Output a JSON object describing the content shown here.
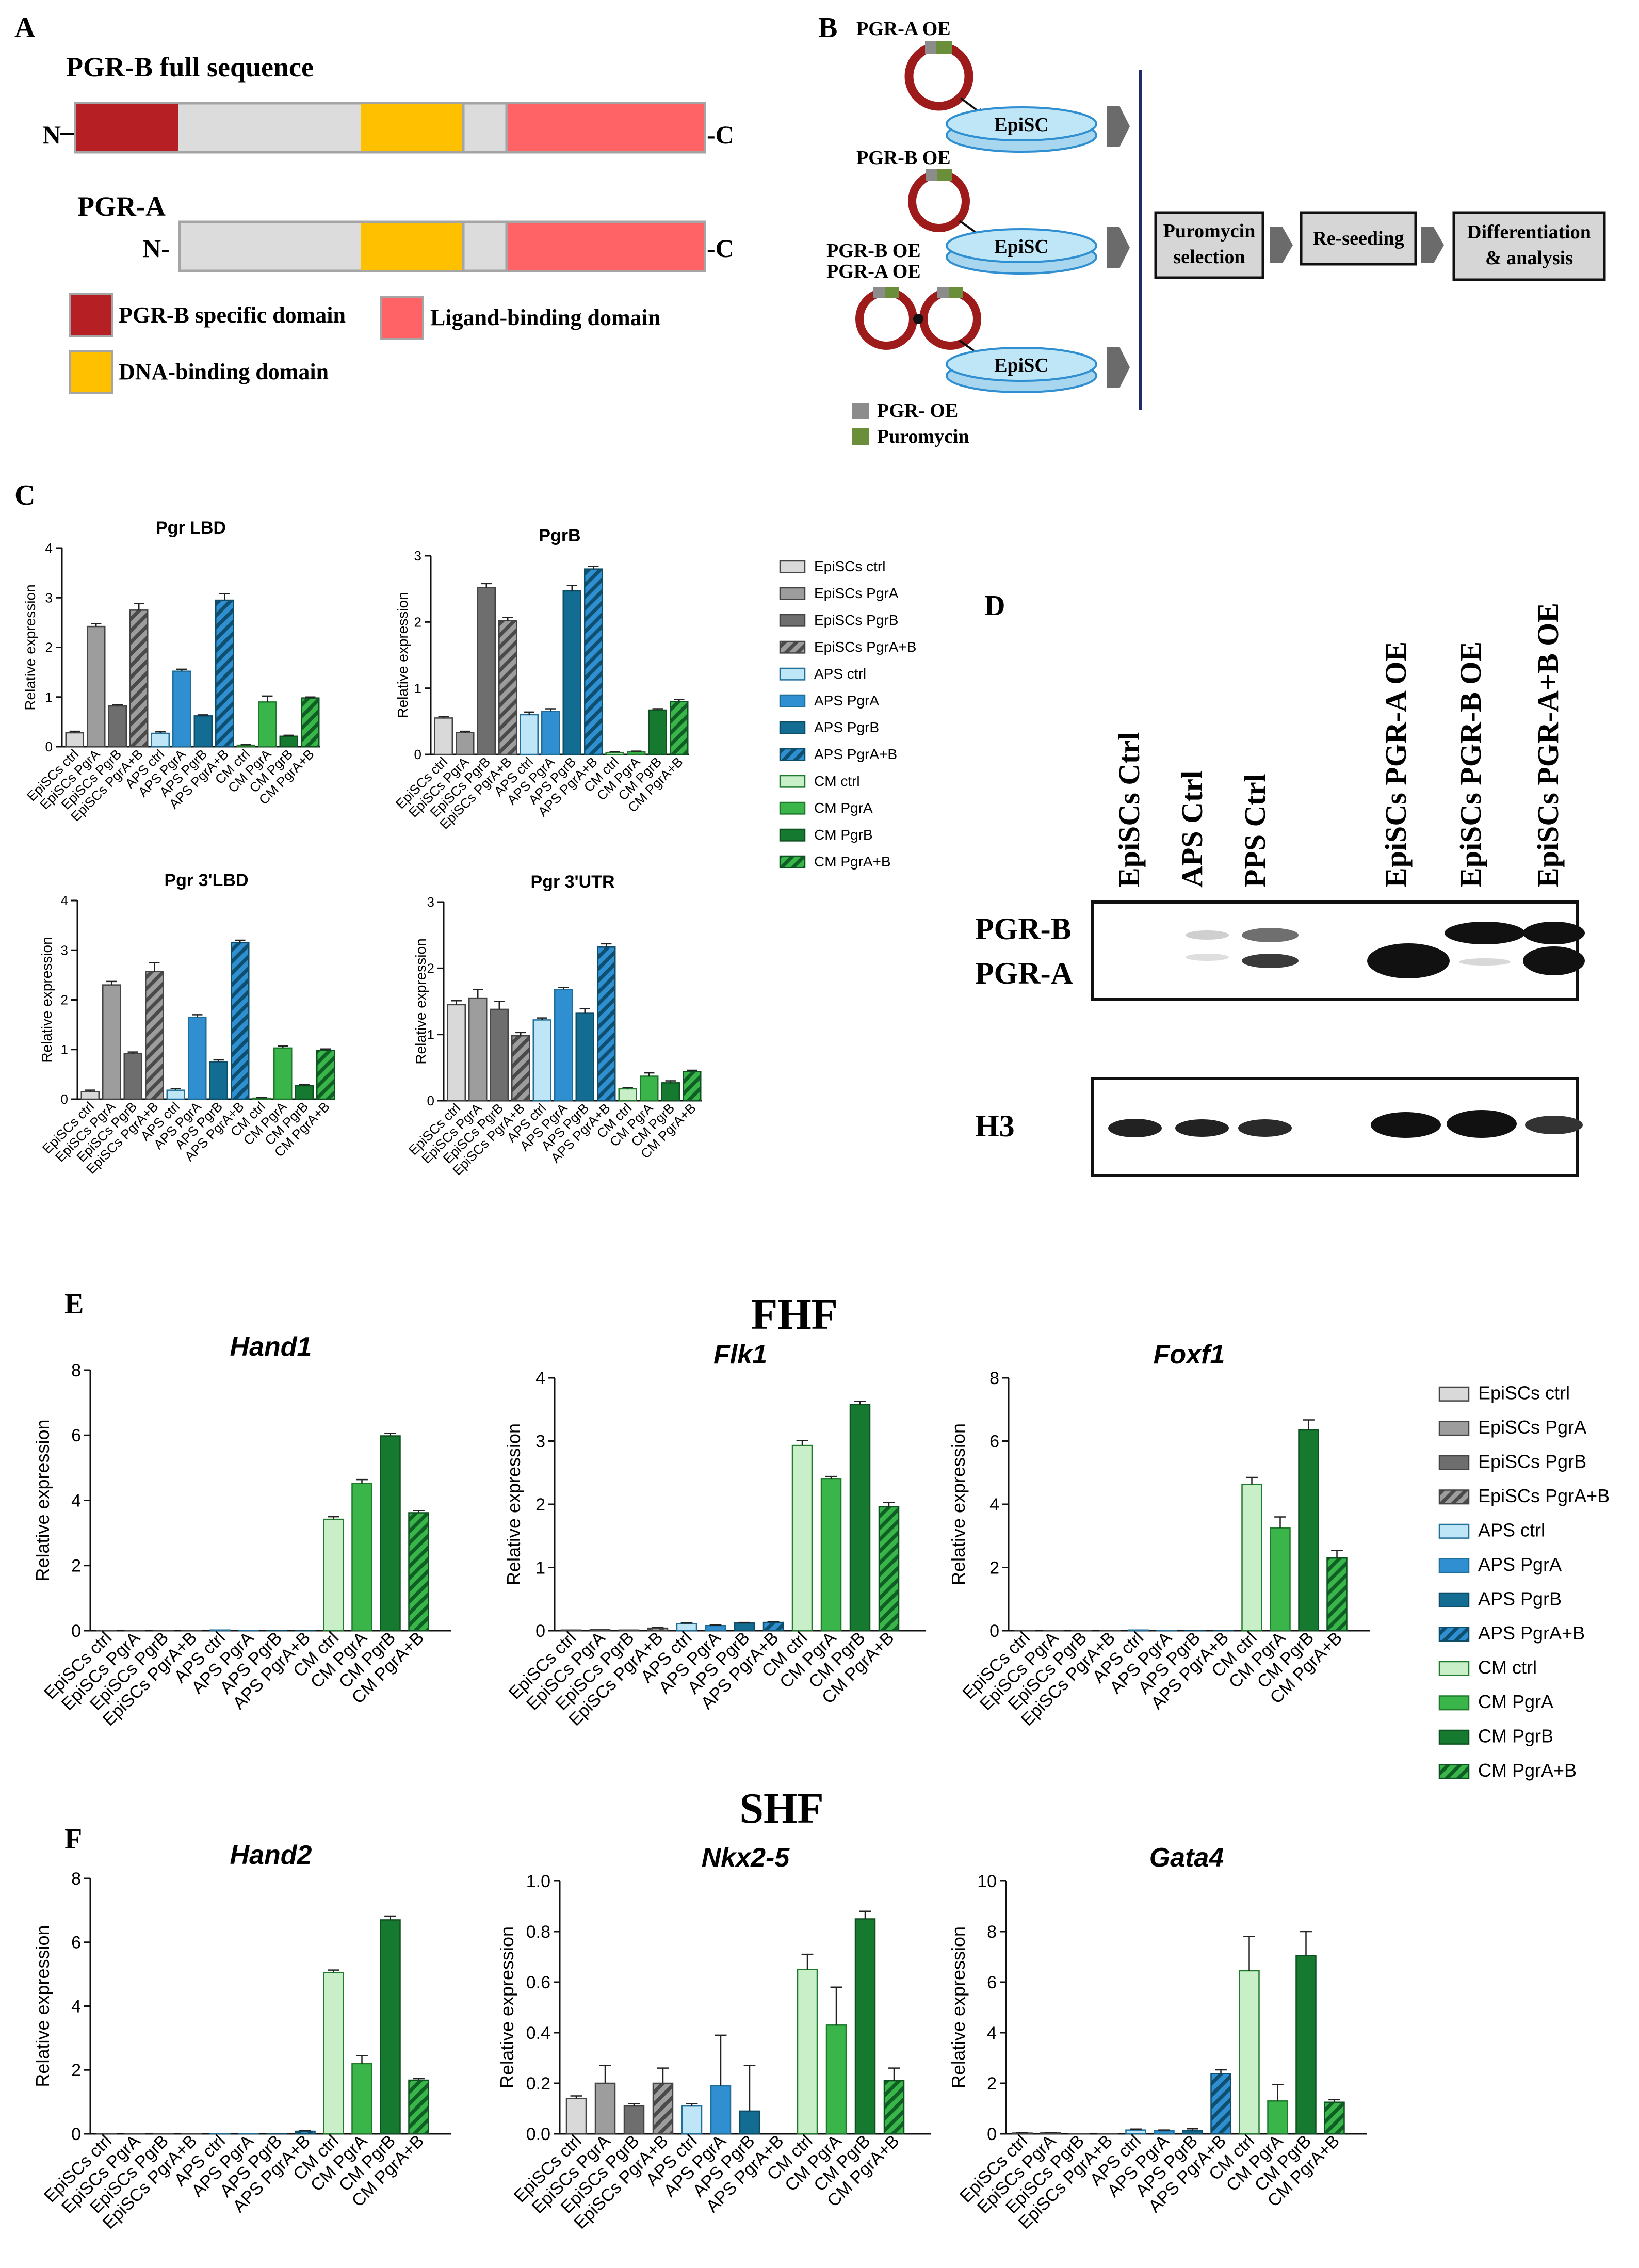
{
  "palette": {
    "grey_light": "#d9d9d9",
    "grey_mid": "#9d9d9d",
    "grey_dark": "#6e6e6e",
    "blue_light": "#bfe6f7",
    "blue_mid": "#2f8fd1",
    "blue_dark": "#136c92",
    "green_light": "#c9efc9",
    "green_mid": "#39b54a",
    "green_dark": "#157a2f",
    "dom_pgrb": "#b61f24",
    "dom_dna": "#ffc000",
    "dom_lbd": "#ff6366",
    "dom_base": "#dcdcdc",
    "puro": "#6a8e3a",
    "pgroe": "#8c8c8c",
    "plasmid": "#9e1b1b",
    "dish": "#a9d6ef"
  },
  "panelA": {
    "letter": "A",
    "title_b": "PGR-B full sequence",
    "title_a": "PGR-A",
    "n_term": "N-",
    "n_term_plain": "N",
    "c_term": "-C",
    "legend": [
      {
        "label": "PGR-B specific domain",
        "color_key": "dom_pgrb"
      },
      {
        "label": "Ligand-binding domain",
        "color_key": "dom_lbd"
      },
      {
        "label": "DNA-binding domain",
        "color_key": "dom_dna"
      }
    ]
  },
  "panelB": {
    "letter": "B",
    "oe_labels": [
      "PGR-A OE",
      "PGR-B OE",
      "PGR-B OE",
      "PGR-A OE"
    ],
    "dish_label": "EpiSC",
    "steps": [
      "Puromycin selection",
      "Re-seeding",
      "Differentiation & analysis"
    ],
    "steps_lines": [
      [
        "Puromycin",
        "selection"
      ],
      [
        "Re-seeding"
      ],
      [
        "Differentiation",
        "& analysis"
      ]
    ],
    "legend": [
      {
        "label": "PGR- OE",
        "color_key": "pgroe"
      },
      {
        "label": "Puromycin",
        "color_key": "puro"
      }
    ]
  },
  "panelC": {
    "letter": "C",
    "ylabel": "Relative expression",
    "legend": [
      "EpiSCs ctrl",
      "EpiSCs PgrA",
      "EpiSCs PgrB",
      "EpiSCs PgrA+B",
      "APS ctrl",
      "APS PgrA",
      "APS PgrB",
      "APS PgrA+B",
      "CM ctrl",
      "CM PgrA",
      "CM PgrB",
      "CM PgrA+B"
    ]
  },
  "panelD": {
    "letter": "D",
    "lanes": [
      "EpiSCs Ctrl",
      "APS Ctrl",
      "PPS Ctrl",
      "EpiSCs PGR-A OE",
      "EpiSCs PGR-B OE",
      "EpiSCs PGR-A+B OE"
    ],
    "band_labels": [
      "PGR-B",
      "PGR-A"
    ],
    "loading_label": "H3"
  },
  "panelE": {
    "letter": "E",
    "title": "FHF",
    "ylabel": "Relative expression"
  },
  "panelF": {
    "letter": "F",
    "title": "SHF",
    "ylabel": "Relative expression"
  },
  "chart_data": [
    {
      "id": "c1",
      "panel": "C",
      "type": "bar",
      "title": "Pgr LBD",
      "title_italic": false,
      "categories": [
        "EpiSCs ctrl",
        "EpiSCs PgrA",
        "EpiSCs PgrB",
        "EpiSCs PgrA+B",
        "APS ctrl",
        "APS PgrA",
        "APS PgrB",
        "APS PgrA+B",
        "CM ctrl",
        "CM PgrA",
        "CM PgrB",
        "CM PgrA+B"
      ],
      "values": [
        0.28,
        2.42,
        0.82,
        2.75,
        0.27,
        1.52,
        0.62,
        2.95,
        0.03,
        0.9,
        0.21,
        0.98
      ],
      "errors": [
        0.03,
        0.06,
        0.03,
        0.13,
        0.03,
        0.04,
        0.02,
        0.13,
        0.01,
        0.12,
        0.02,
        0.02
      ],
      "ylabel": "Relative expression",
      "ylim": [
        0,
        4
      ],
      "yticks": [
        "0",
        "1",
        "2",
        "3",
        "4"
      ]
    },
    {
      "id": "c2",
      "panel": "C",
      "type": "bar",
      "title": "PgrB",
      "title_italic": false,
      "categories": [
        "EpiSCs ctrl",
        "EpiSCs PgrA",
        "EpiSCs PgrB",
        "EpiSCs PgrA+B",
        "APS ctrl",
        "APS PgrA",
        "APS PgrB",
        "APS PgrA+B",
        "CM ctrl",
        "CM PgrA",
        "CM PgrB",
        "CM PgrA+B"
      ],
      "values": [
        0.55,
        0.33,
        2.52,
        2.02,
        0.6,
        0.65,
        2.47,
        2.8,
        0.03,
        0.04,
        0.67,
        0.8
      ],
      "errors": [
        0.02,
        0.02,
        0.06,
        0.05,
        0.04,
        0.04,
        0.08,
        0.04,
        0.01,
        0.01,
        0.02,
        0.03
      ],
      "ylabel": "Relative expression",
      "ylim": [
        0,
        3
      ],
      "yticks": [
        "0",
        "1",
        "2",
        "3"
      ]
    },
    {
      "id": "c3",
      "panel": "C",
      "type": "bar",
      "title": "Pgr 3'LBD",
      "title_italic": false,
      "categories": [
        "EpiSCs ctrl",
        "EpiSCs PgrA",
        "EpiSCs PgrB",
        "EpiSCs PgrA+B",
        "APS ctrl",
        "APS PgrA",
        "APS PgrB",
        "APS PgrA+B",
        "CM ctrl",
        "CM PgrA",
        "CM PgrB",
        "CM PgrA+B"
      ],
      "values": [
        0.15,
        2.3,
        0.92,
        2.57,
        0.18,
        1.65,
        0.75,
        3.15,
        0.02,
        1.03,
        0.27,
        0.98
      ],
      "errors": [
        0.03,
        0.07,
        0.03,
        0.18,
        0.03,
        0.05,
        0.04,
        0.05,
        0.01,
        0.04,
        0.02,
        0.03
      ],
      "ylabel": "Relative expression",
      "ylim": [
        0,
        4
      ],
      "yticks": [
        "0",
        "1",
        "2",
        "3",
        "4"
      ]
    },
    {
      "id": "c4",
      "panel": "C",
      "type": "bar",
      "title": "Pgr 3'UTR",
      "title_italic": false,
      "categories": [
        "EpiSCs ctrl",
        "EpiSCs PgrA",
        "EpiSCs PgrB",
        "EpiSCs PgrA+B",
        "APS ctrl",
        "APS PgrA",
        "APS PgrB",
        "APS PgrA+B",
        "CM ctrl",
        "CM PgrA",
        "CM PgrB",
        "CM PgrA+B"
      ],
      "values": [
        1.45,
        1.55,
        1.38,
        0.98,
        1.22,
        1.68,
        1.32,
        2.32,
        0.18,
        0.37,
        0.27,
        0.44
      ],
      "errors": [
        0.06,
        0.13,
        0.12,
        0.05,
        0.03,
        0.03,
        0.07,
        0.05,
        0.02,
        0.05,
        0.03,
        0.02
      ],
      "ylabel": "Relative expression",
      "ylim": [
        0,
        3
      ],
      "yticks": [
        "0",
        "1",
        "2",
        "3"
      ]
    },
    {
      "id": "e1",
      "panel": "E",
      "type": "bar",
      "title": "Hand1",
      "title_italic": true,
      "categories": [
        "EpiSCs ctrl",
        "EpiSCs PgrA",
        "EpiSCs PgrB",
        "EpiSCs PgrA+B",
        "APS ctrl",
        "APS PgrA",
        "APS PgrB",
        "APS PgrA+B",
        "CM ctrl",
        "CM PgrA",
        "CM PgrB",
        "CM PgrA+B"
      ],
      "values": [
        0.01,
        0.01,
        0.01,
        0.01,
        0.02,
        0.01,
        0.01,
        0.01,
        3.42,
        4.52,
        5.98,
        3.62
      ],
      "errors": [
        0,
        0,
        0,
        0,
        0,
        0,
        0,
        0,
        0.08,
        0.12,
        0.08,
        0.06
      ],
      "ylabel": "Relative expression",
      "ylim": [
        0,
        8
      ],
      "yticks": [
        "0",
        "2",
        "4",
        "6",
        "8"
      ]
    },
    {
      "id": "e2",
      "panel": "E",
      "type": "bar",
      "title": "Flk1",
      "title_italic": true,
      "categories": [
        "EpiSCs ctrl",
        "EpiSCs PgrA",
        "EpiSCs PgrB",
        "EpiSCs PgrA+B",
        "APS ctrl",
        "APS PgrA",
        "APS PgrB",
        "APS PgrA+B",
        "CM ctrl",
        "CM PgrA",
        "CM PgrB",
        "CM PgrA+B"
      ],
      "values": [
        0.01,
        0.02,
        0.01,
        0.04,
        0.11,
        0.08,
        0.12,
        0.13,
        2.93,
        2.4,
        3.58,
        1.96
      ],
      "errors": [
        0,
        0,
        0,
        0.01,
        0.01,
        0.01,
        0.01,
        0.01,
        0.08,
        0.04,
        0.05,
        0.07
      ],
      "ylabel": "Relative expression",
      "ylim": [
        0,
        4
      ],
      "yticks": [
        "0",
        "1",
        "2",
        "3",
        "4"
      ]
    },
    {
      "id": "e3",
      "panel": "E",
      "type": "bar",
      "title": "Foxf1",
      "title_italic": true,
      "categories": [
        "EpiSCs ctrl",
        "EpiSCs PgrA",
        "EpiSCs PgrB",
        "EpiSCs PgrA+B",
        "APS ctrl",
        "APS PgrA",
        "APS PgrB",
        "APS PgrA+B",
        "CM ctrl",
        "CM PgrA",
        "CM PgrB",
        "CM PgrA+B"
      ],
      "values": [
        0.01,
        0.01,
        0.01,
        0.01,
        0.02,
        0.01,
        0.01,
        0.01,
        4.63,
        3.25,
        6.35,
        2.3
      ],
      "errors": [
        0,
        0,
        0,
        0,
        0,
        0,
        0,
        0,
        0.22,
        0.35,
        0.32,
        0.24
      ],
      "ylabel": "Relative expression",
      "ylim": [
        0,
        8
      ],
      "yticks": [
        "0",
        "2",
        "4",
        "6",
        "8"
      ]
    },
    {
      "id": "f1",
      "panel": "F",
      "type": "bar",
      "title": "Hand2",
      "title_italic": true,
      "categories": [
        "EpiSCs ctrl",
        "EpiSCs PgrA",
        "EpiSCs PgrB",
        "EpiSCs PgrA+B",
        "APS ctrl",
        "APS PgrA",
        "APS PgrB",
        "APS PgrA+B",
        "CM ctrl",
        "CM PgrA",
        "CM PgrB",
        "CM PgrA+B"
      ],
      "values": [
        0.01,
        0.01,
        0.01,
        0.01,
        0.01,
        0.01,
        0.01,
        0.08,
        5.05,
        2.2,
        6.7,
        1.68
      ],
      "errors": [
        0,
        0,
        0,
        0,
        0,
        0,
        0,
        0.02,
        0.08,
        0.25,
        0.12,
        0.05
      ],
      "ylabel": "Relative expression",
      "ylim": [
        0,
        8
      ],
      "yticks": [
        "0",
        "2",
        "4",
        "6",
        "8"
      ]
    },
    {
      "id": "f2",
      "panel": "F",
      "type": "bar",
      "title": "Nkx2-5",
      "title_italic": true,
      "categories": [
        "EpiSCs ctrl",
        "EpiSCs PgrA",
        "EpiSCs PgrB",
        "EpiSCs PgrA+B",
        "APS ctrl",
        "APS PgrA",
        "APS PgrB",
        "APS PgrA+B",
        "CM ctrl",
        "CM PgrA",
        "CM PgrB",
        "CM PgrA+B"
      ],
      "values": [
        0.14,
        0.2,
        0.11,
        0.2,
        0.11,
        0.19,
        0.09,
        0.0,
        0.65,
        0.43,
        0.85,
        0.21
      ],
      "errors": [
        0.01,
        0.07,
        0.01,
        0.06,
        0.01,
        0.2,
        0.18,
        0.0,
        0.06,
        0.15,
        0.03,
        0.05
      ],
      "ylabel": "Relative expression",
      "ylim": [
        0,
        1.0
      ],
      "yticks": [
        "0.0",
        "0.2",
        "0.4",
        "0.6",
        "0.8",
        "1.0"
      ]
    },
    {
      "id": "f3",
      "panel": "F",
      "type": "bar",
      "title": "Gata4",
      "title_italic": true,
      "categories": [
        "EpiSCs ctrl",
        "EpiSCs PgrA",
        "EpiSCs PgrB",
        "EpiSCs PgrA+B",
        "APS ctrl",
        "APS PgrA",
        "APS PgrB",
        "APS PgrA+B",
        "CM ctrl",
        "CM PgrA",
        "CM PgrB",
        "CM PgrA+B"
      ],
      "values": [
        0.03,
        0.04,
        0.01,
        0.01,
        0.15,
        0.12,
        0.12,
        2.38,
        6.45,
        1.3,
        7.05,
        1.25
      ],
      "errors": [
        0.01,
        0.01,
        0,
        0,
        0.04,
        0.03,
        0.08,
        0.15,
        1.35,
        0.65,
        0.95,
        0.1
      ],
      "ylabel": "Relative expression",
      "ylim": [
        0,
        10
      ],
      "yticks": [
        "0",
        "2",
        "4",
        "6",
        "8",
        "10"
      ]
    }
  ]
}
